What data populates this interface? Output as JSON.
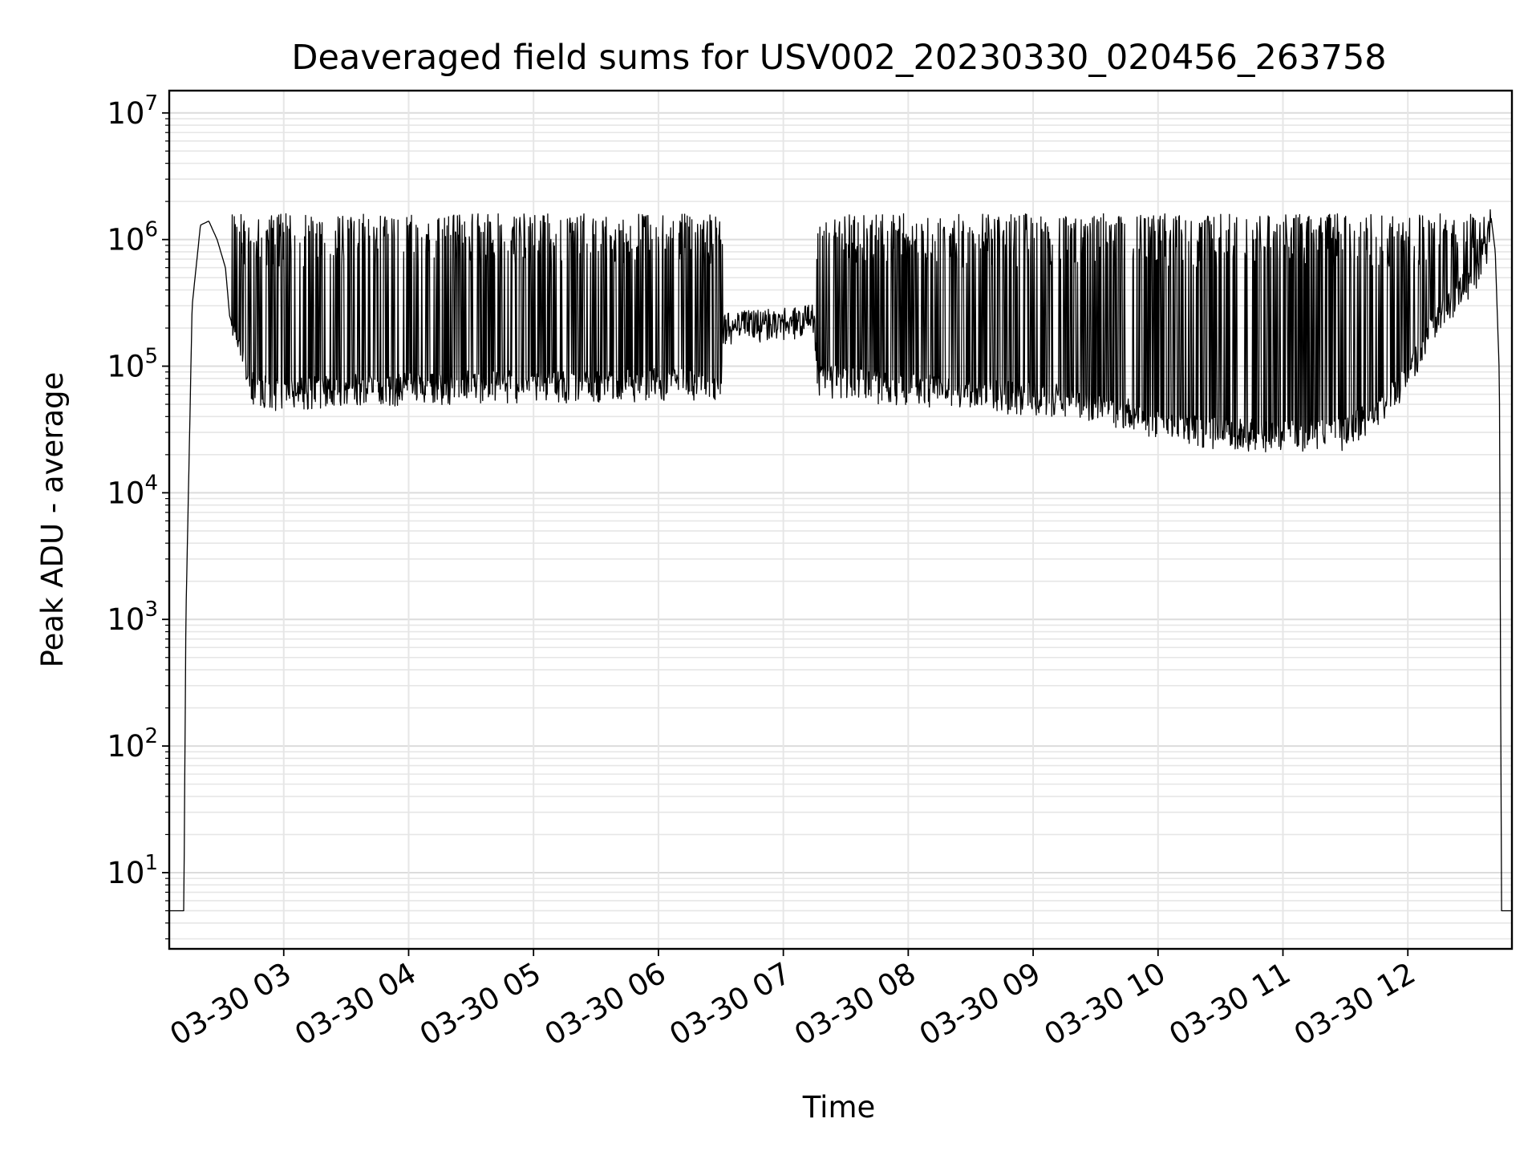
{
  "chart_data": {
    "type": "line",
    "title": "Deaveraged field sums for USV002_20230330_020456_263758",
    "xlabel": "Time",
    "ylabel": "Peak ADU - average",
    "yscale": "log",
    "ylim": [
      2.5,
      15000000
    ],
    "xlim": [
      "2023-03-30 02:05",
      "2023-03-30 12:50"
    ],
    "grid": true,
    "x_tick_labels": [
      "03-30 03",
      "03-30 04",
      "03-30 05",
      "03-30 06",
      "03-30 07",
      "03-30 08",
      "03-30 09",
      "03-30 10",
      "03-30 11",
      "03-30 12"
    ],
    "x_ticks": [
      "2023-03-30 03:00",
      "2023-03-30 04:00",
      "2023-03-30 05:00",
      "2023-03-30 06:00",
      "2023-03-30 07:00",
      "2023-03-30 08:00",
      "2023-03-30 09:00",
      "2023-03-30 10:00",
      "2023-03-30 11:00",
      "2023-03-30 12:00"
    ],
    "y_ticks": [
      10,
      100,
      1000,
      10000,
      100000,
      1000000,
      10000000
    ],
    "y_tick_labels": [
      {
        "base": "10",
        "exp": "1"
      },
      {
        "base": "10",
        "exp": "2"
      },
      {
        "base": "10",
        "exp": "3"
      },
      {
        "base": "10",
        "exp": "4"
      },
      {
        "base": "10",
        "exp": "5"
      },
      {
        "base": "10",
        "exp": "6"
      },
      {
        "base": "10",
        "exp": "7"
      }
    ],
    "line_color": "#000000",
    "series": [
      {
        "x": [
          "2023-03-30 02:05",
          "2023-03-30 02:12",
          "2023-03-30 02:13",
          "2023-03-30 02:16",
          "2023-03-30 02:20",
          "2023-03-30 02:24",
          "2023-03-30 02:28",
          "2023-03-30 02:32",
          "2023-03-30 02:34",
          "2023-03-30 02:40",
          "2023-03-30 02:45",
          "2023-03-30 02:55",
          "2023-03-30 03:30",
          "2023-03-30 04:30",
          "2023-03-30 05:30",
          "2023-03-30 06:15",
          "2023-03-30 06:30",
          "2023-03-30 06:31",
          "2023-03-30 06:45",
          "2023-03-30 07:05",
          "2023-03-30 07:15",
          "2023-03-30 07:16",
          "2023-03-30 07:45",
          "2023-03-30 08:30",
          "2023-03-30 09:15",
          "2023-03-30 09:40",
          "2023-03-30 10:00",
          "2023-03-30 10:30",
          "2023-03-30 11:00",
          "2023-03-30 11:30",
          "2023-03-30 11:45",
          "2023-03-30 12:00",
          "2023-03-30 12:15",
          "2023-03-30 12:35",
          "2023-03-30 12:40",
          "2023-03-30 12:42",
          "2023-03-30 12:44",
          "2023-03-30 12:45",
          "2023-03-30 12:50"
        ],
        "y": [
          5,
          5,
          1000,
          300000,
          1300000,
          1400000,
          1000000,
          600000,
          250000,
          120000,
          70000,
          60000,
          65000,
          70000,
          70000,
          75000,
          60000,
          200000,
          210000,
          220000,
          250000,
          80000,
          70000,
          60000,
          55000,
          45000,
          35000,
          30000,
          28000,
          30000,
          45000,
          80000,
          250000,
          600000,
          1500000,
          800000,
          80000,
          5,
          5
        ]
      }
    ]
  }
}
